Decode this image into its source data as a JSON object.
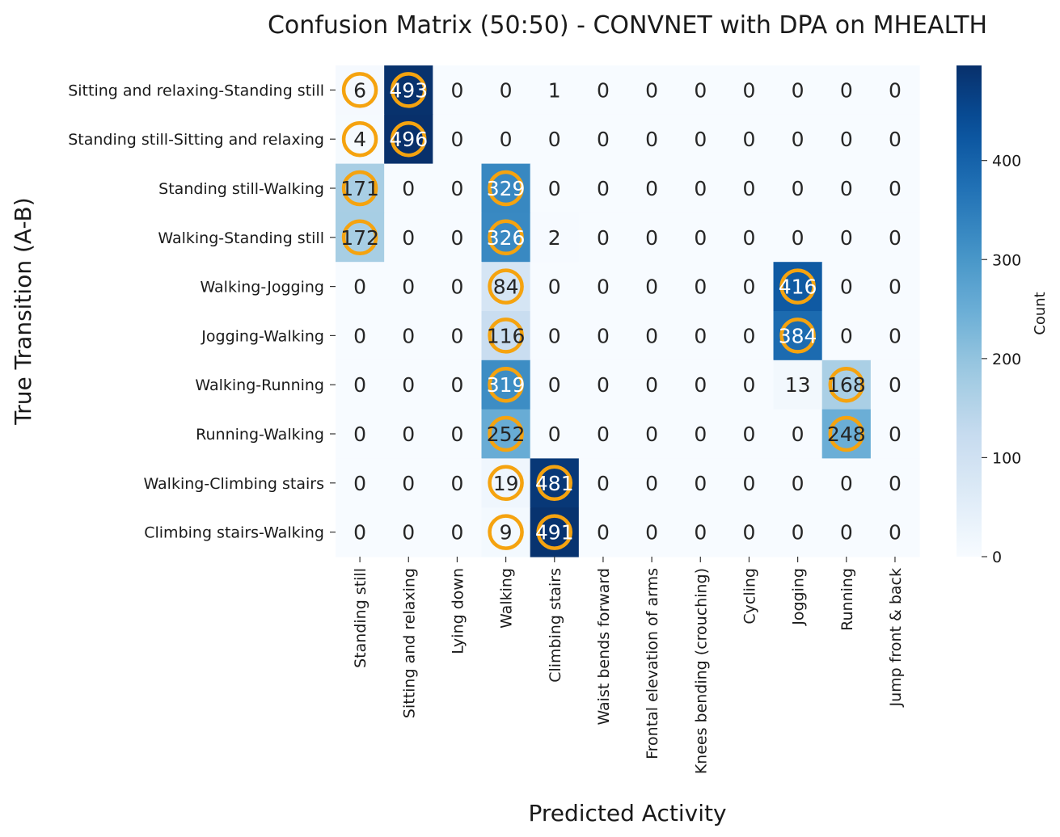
{
  "chart_data": {
    "type": "heatmap",
    "title": "Confusion Matrix (50:50) - CONVNET with DPA on MHEALTH",
    "xlabel": "Predicted Activity",
    "ylabel": "True Transition (A-B)",
    "colorbar_label": "Count",
    "colorbar_ticks": [
      0,
      100,
      200,
      300,
      400
    ],
    "colormap": "Blues",
    "vmin": 0,
    "vmax": 496,
    "highlight_color": "#f5a30f",
    "x_categories": [
      "Standing still",
      "Sitting and relaxing",
      "Lying down",
      "Walking",
      "Climbing stairs",
      "Waist bends forward",
      "Frontal elevation of arms",
      "Knees bending (crouching)",
      "Cycling",
      "Jogging",
      "Running",
      "Jump front & back"
    ],
    "y_categories": [
      "Sitting and relaxing-Standing still",
      "Standing still-Sitting and relaxing",
      "Standing still-Walking",
      "Walking-Standing still",
      "Walking-Jogging",
      "Jogging-Walking",
      "Walking-Running",
      "Running-Walking",
      "Walking-Climbing stairs",
      "Climbing stairs-Walking"
    ],
    "matrix": [
      [
        6,
        493,
        0,
        0,
        1,
        0,
        0,
        0,
        0,
        0,
        0,
        0
      ],
      [
        4,
        496,
        0,
        0,
        0,
        0,
        0,
        0,
        0,
        0,
        0,
        0
      ],
      [
        171,
        0,
        0,
        329,
        0,
        0,
        0,
        0,
        0,
        0,
        0,
        0
      ],
      [
        172,
        0,
        0,
        326,
        2,
        0,
        0,
        0,
        0,
        0,
        0,
        0
      ],
      [
        0,
        0,
        0,
        84,
        0,
        0,
        0,
        0,
        0,
        416,
        0,
        0
      ],
      [
        0,
        0,
        0,
        116,
        0,
        0,
        0,
        0,
        0,
        384,
        0,
        0
      ],
      [
        0,
        0,
        0,
        319,
        0,
        0,
        0,
        0,
        0,
        13,
        168,
        0
      ],
      [
        0,
        0,
        0,
        252,
        0,
        0,
        0,
        0,
        0,
        0,
        248,
        0
      ],
      [
        0,
        0,
        0,
        19,
        481,
        0,
        0,
        0,
        0,
        0,
        0,
        0
      ],
      [
        0,
        0,
        0,
        9,
        491,
        0,
        0,
        0,
        0,
        0,
        0,
        0
      ]
    ],
    "highlighted_cells": [
      [
        0,
        0
      ],
      [
        0,
        1
      ],
      [
        1,
        0
      ],
      [
        1,
        1
      ],
      [
        2,
        0
      ],
      [
        2,
        3
      ],
      [
        3,
        0
      ],
      [
        3,
        3
      ],
      [
        4,
        3
      ],
      [
        4,
        9
      ],
      [
        5,
        3
      ],
      [
        5,
        9
      ],
      [
        6,
        3
      ],
      [
        6,
        10
      ],
      [
        7,
        3
      ],
      [
        7,
        10
      ],
      [
        8,
        3
      ],
      [
        8,
        4
      ],
      [
        9,
        3
      ],
      [
        9,
        4
      ]
    ]
  }
}
